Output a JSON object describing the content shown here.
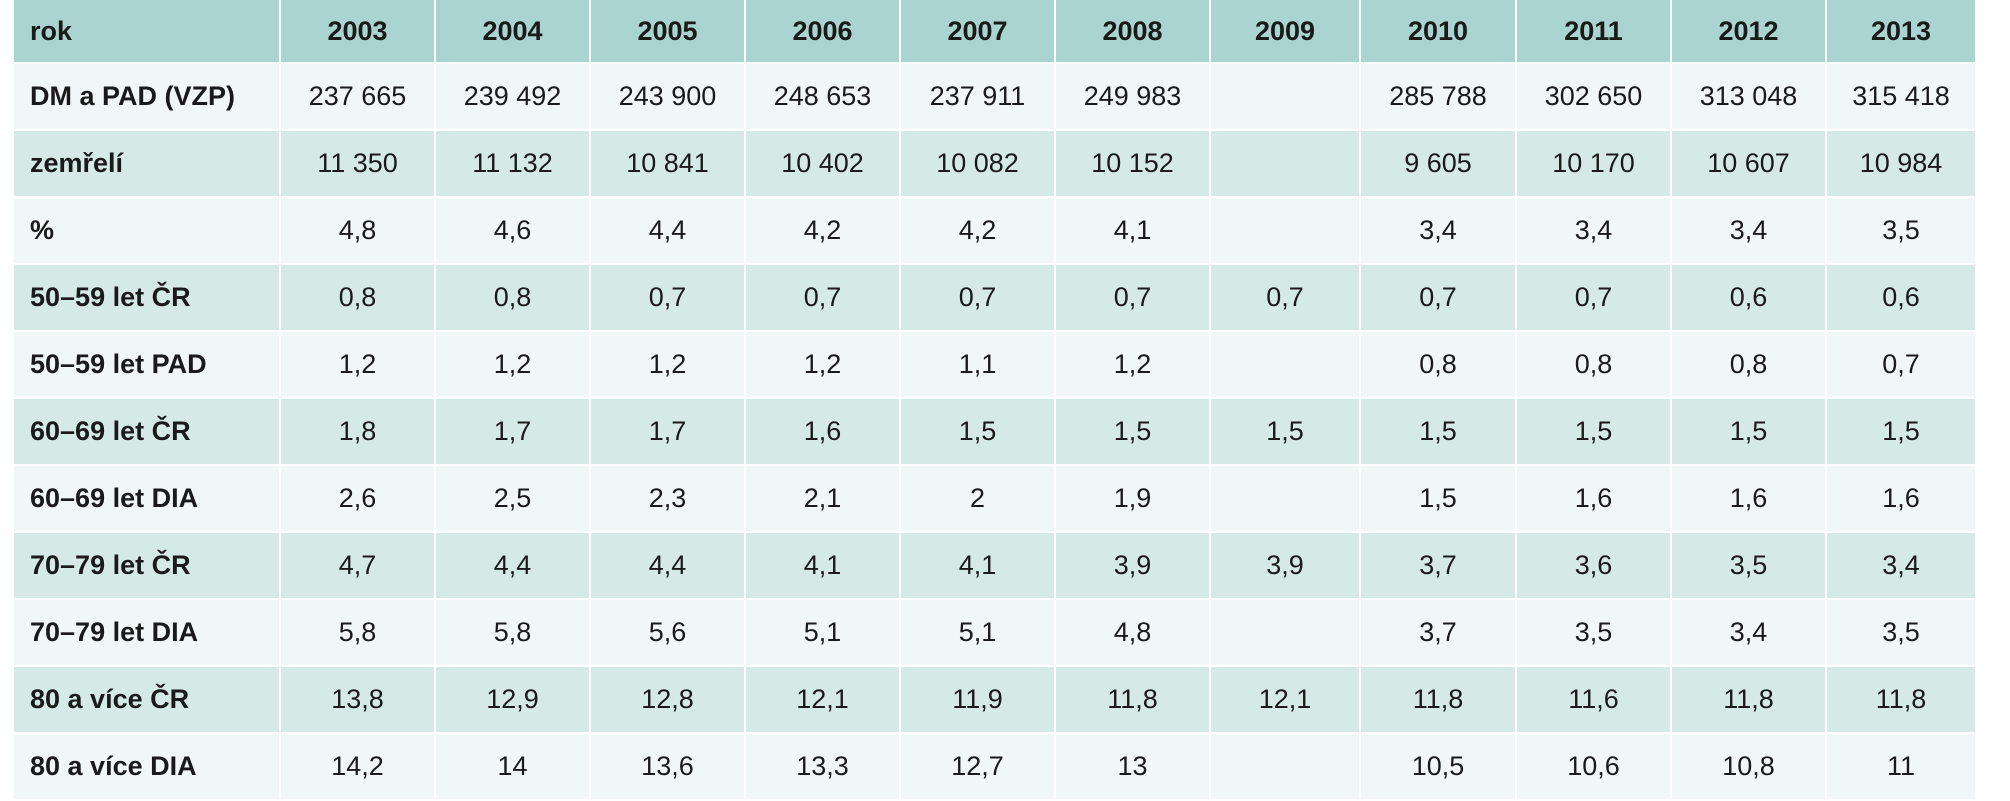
{
  "table": {
    "header": [
      "rok",
      "2003",
      "2004",
      "2005",
      "2006",
      "2007",
      "2008",
      "2009",
      "2010",
      "2011",
      "2012",
      "2013"
    ],
    "rows": [
      {
        "label": "DM a PAD (VZP)",
        "values": [
          "237 665",
          "239 492",
          "243 900",
          "248 653",
          "237 911",
          "249 983",
          "",
          "285 788",
          "302 650",
          "313 048",
          "315 418"
        ]
      },
      {
        "label": "zemřelí",
        "values": [
          "11 350",
          "11 132",
          "10 841",
          "10 402",
          "10 082",
          "10 152",
          "",
          "9 605",
          "10 170",
          "10 607",
          "10 984"
        ]
      },
      {
        "label": "%",
        "values": [
          "4,8",
          "4,6",
          "4,4",
          "4,2",
          "4,2",
          "4,1",
          "",
          "3,4",
          "3,4",
          "3,4",
          "3,5"
        ]
      },
      {
        "label": "50–59 let ČR",
        "values": [
          "0,8",
          "0,8",
          "0,7",
          "0,7",
          "0,7",
          "0,7",
          "0,7",
          "0,7",
          "0,7",
          "0,6",
          "0,6"
        ]
      },
      {
        "label": "50–59 let PAD",
        "values": [
          "1,2",
          "1,2",
          "1,2",
          "1,2",
          "1,1",
          "1,2",
          "",
          "0,8",
          "0,8",
          "0,8",
          "0,7"
        ]
      },
      {
        "label": "60–69 let ČR",
        "values": [
          "1,8",
          "1,7",
          "1,7",
          "1,6",
          "1,5",
          "1,5",
          "1,5",
          "1,5",
          "1,5",
          "1,5",
          "1,5"
        ]
      },
      {
        "label": "60–69 let DIA",
        "values": [
          "2,6",
          "2,5",
          "2,3",
          "2,1",
          "2",
          "1,9",
          "",
          "1,5",
          "1,6",
          "1,6",
          "1,6"
        ]
      },
      {
        "label": "70–79 let ČR",
        "values": [
          "4,7",
          "4,4",
          "4,4",
          "4,1",
          "4,1",
          "3,9",
          "3,9",
          "3,7",
          "3,6",
          "3,5",
          "3,4"
        ]
      },
      {
        "label": "70–79 let DIA",
        "values": [
          "5,8",
          "5,8",
          "5,6",
          "5,1",
          "5,1",
          "4,8",
          "",
          "3,7",
          "3,5",
          "3,4",
          "3,5"
        ]
      },
      {
        "label": "80 a více ČR",
        "values": [
          "13,8",
          "12,9",
          "12,8",
          "12,1",
          "11,9",
          "11,8",
          "12,1",
          "11,8",
          "11,6",
          "11,8",
          "11,8"
        ]
      },
      {
        "label": "80 a více DIA",
        "values": [
          "14,2",
          "14",
          "13,6",
          "13,3",
          "12,7",
          "13",
          "",
          "10,5",
          "10,6",
          "10,8",
          "11"
        ]
      }
    ]
  },
  "colors": {
    "header_bg": "#a9d4d0",
    "row_light": "#f0f7f6",
    "row_dark": "#d5eae7",
    "text": "#1a1a1a"
  }
}
